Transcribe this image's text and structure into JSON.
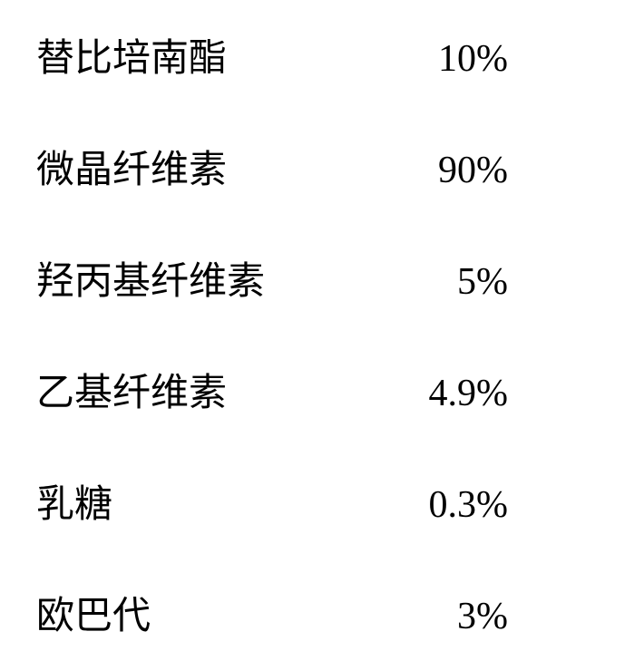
{
  "table": {
    "type": "table",
    "background_color": "#ffffff",
    "text_color": "#000000",
    "label_fontsize": 42,
    "value_fontsize": 42,
    "label_font": "SimSun",
    "value_font": "Times New Roman",
    "row_gap": 62,
    "label_width": 380,
    "value_width": 140,
    "rows": [
      {
        "label": "替比培南酯",
        "value": "10%"
      },
      {
        "label": "微晶纤维素",
        "value": "90%"
      },
      {
        "label": "羟丙基纤维素",
        "value": "5%"
      },
      {
        "label": "乙基纤维素",
        "value": "4.9%"
      },
      {
        "label": "乳糖",
        "value": "0.3%"
      },
      {
        "label": "欧巴代",
        "value": "3%"
      }
    ]
  }
}
